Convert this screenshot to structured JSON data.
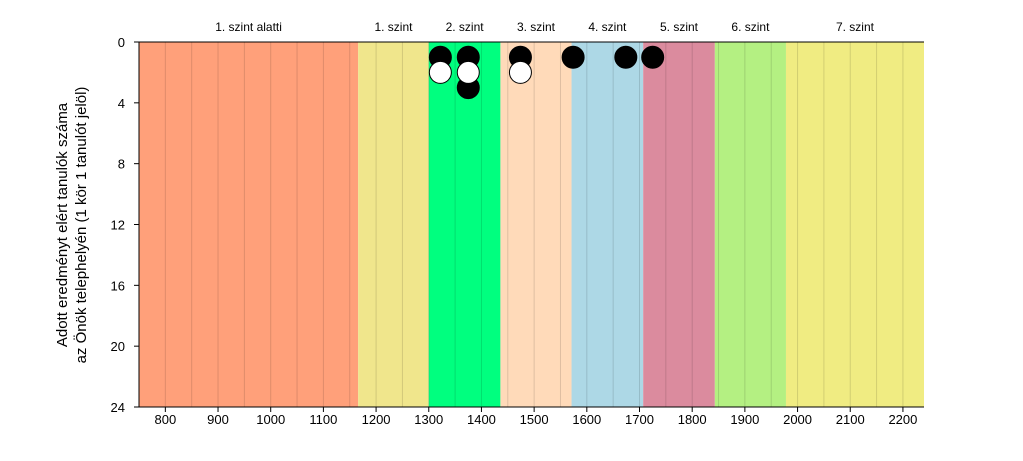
{
  "chart_data": {
    "type": "scatter",
    "ylabel_line1": "Adott eredményt elért tanulók száma",
    "ylabel_line2": "az Önök telephelyén (1 kör 1 tanulót jelöl)",
    "xlim": [
      750,
      2240
    ],
    "ylim": [
      0,
      24
    ],
    "y_inverted": true,
    "x_ticks": [
      800,
      900,
      1000,
      1100,
      1200,
      1300,
      1400,
      1500,
      1600,
      1700,
      1800,
      1900,
      2000,
      2100,
      2200
    ],
    "y_ticks": [
      0,
      4,
      8,
      12,
      16,
      20,
      24
    ],
    "vertical_grid_step": 50,
    "bands": [
      {
        "label": "1. szint alatti",
        "from": 750,
        "to": 1166,
        "color": "#FFA07A"
      },
      {
        "label": "1. szint",
        "from": 1166,
        "to": 1300,
        "color": "#F0E68C"
      },
      {
        "label": "2. szint",
        "from": 1300,
        "to": 1436,
        "color": "#00FF7F"
      },
      {
        "label": "3. szint",
        "from": 1436,
        "to": 1571,
        "color": "#FFDAB9"
      },
      {
        "label": "4. szint",
        "from": 1571,
        "to": 1707,
        "color": "#ADD8E6"
      },
      {
        "label": "5. szint",
        "from": 1707,
        "to": 1843,
        "color": "#DB8B9E"
      },
      {
        "label": "6. szint",
        "from": 1843,
        "to": 1978,
        "color": "#B4F082"
      },
      {
        "label": "7. szint",
        "from": 1978,
        "to": 2240,
        "color": "#F0EC82"
      }
    ],
    "series": [
      {
        "fill": "#000000",
        "points": [
          [
            1322,
            1
          ],
          [
            1375,
            1
          ],
          [
            1375,
            3
          ],
          [
            1474,
            1
          ],
          [
            1574,
            1
          ],
          [
            1674,
            1
          ],
          [
            1725,
            1
          ]
        ]
      },
      {
        "fill": "#ffffff",
        "points": [
          [
            1322,
            2
          ],
          [
            1375,
            2
          ],
          [
            1474,
            2
          ]
        ]
      }
    ]
  }
}
